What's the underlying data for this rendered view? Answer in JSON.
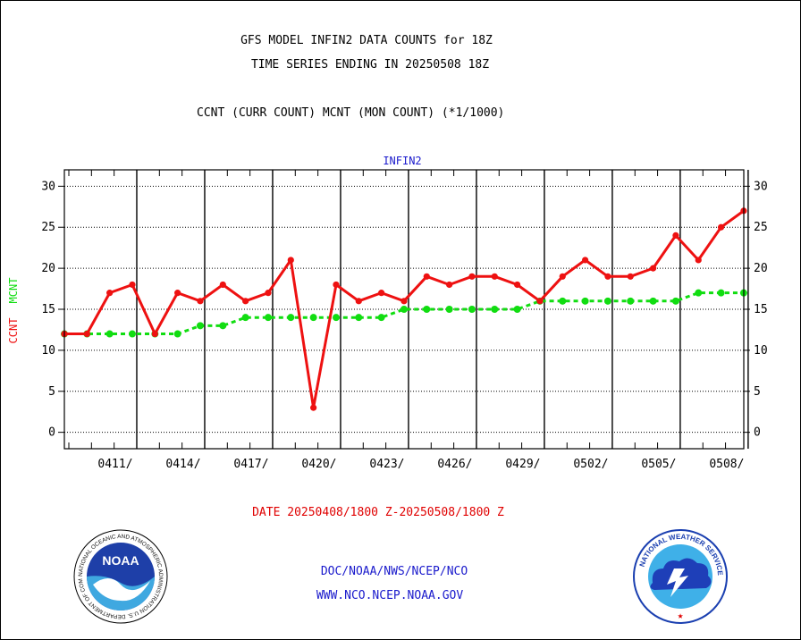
{
  "header": {
    "title": "GFS MODEL INFIN2 DATA COUNTS for 18Z",
    "subtitle_line": "TIME SERIES ENDING IN 20250508 18Z",
    "legend_note": "CCNT (CURR COUNT) MCNT (MON COUNT) (*1/1000)"
  },
  "footer": {
    "date_range": "DATE 20250408/1800 Z-20250508/1800 Z",
    "org": "DOC/NOAA/NWS/NCEP/NCO",
    "url": "WWW.NCO.NCEP.NOAA.GOV"
  },
  "logos": {
    "noaa_text": "NOAA",
    "noaa_ring": "NATIONAL OCEANIC AND ATMOSPHERIC ADMINISTRATION U.S. DEPARTMENT OF COMMERCE",
    "nws_ring": "NATIONAL WEATHER SERVICE"
  },
  "chart_data": {
    "type": "line",
    "title": "INFIN2",
    "ylabel_ccnt": "CCNT",
    "ylabel_mcnt": "MCNT",
    "ylim": [
      -2,
      32
    ],
    "yticks": [
      0,
      5,
      10,
      15,
      20,
      25,
      30
    ],
    "grid": true,
    "x_tick_labels": [
      "0411/",
      "0414/",
      "0417/",
      "0420/",
      "0423/",
      "0426/",
      "0429/",
      "0502/",
      "0505/",
      "0508/"
    ],
    "x_tick_days": [
      3,
      6,
      9,
      12,
      15,
      18,
      21,
      24,
      27,
      30
    ],
    "x_days": [
      0,
      1,
      2,
      3,
      4,
      5,
      6,
      7,
      8,
      9,
      10,
      11,
      12,
      13,
      14,
      15,
      16,
      17,
      18,
      19,
      20,
      21,
      22,
      23,
      24,
      25,
      26,
      27,
      28,
      29,
      30
    ],
    "colors": {
      "ccnt": "#ee1111",
      "mcnt": "#11dd11",
      "title": "#1a1acc",
      "axis": "#000000"
    },
    "series": [
      {
        "name": "CCNT",
        "values": [
          12,
          12,
          17,
          18,
          12,
          17,
          16,
          18,
          16,
          17,
          21,
          3,
          18,
          16,
          17,
          16,
          19,
          18,
          19,
          19,
          18,
          16,
          19,
          21,
          19,
          19,
          20,
          24,
          21,
          25,
          27
        ]
      },
      {
        "name": "MCNT",
        "values": [
          12,
          12,
          12,
          12,
          12,
          12,
          13,
          13,
          14,
          14,
          14,
          14,
          14,
          14,
          14,
          15,
          15,
          15,
          15,
          15,
          15,
          16,
          16,
          16,
          16,
          16,
          16,
          16,
          17,
          17,
          17
        ]
      }
    ]
  }
}
